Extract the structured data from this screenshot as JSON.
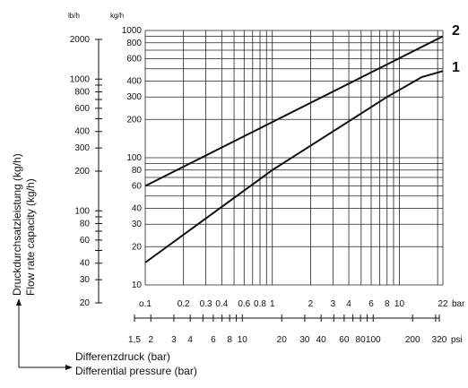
{
  "chart_data": {
    "type": "line",
    "title": "",
    "x_axis": {
      "scale": "log",
      "range": [
        0.1,
        22
      ],
      "unit": "bar",
      "tick_values": [
        0.1,
        0.2,
        0.3,
        0.4,
        0.6,
        0.8,
        1,
        2,
        3,
        4,
        6,
        8,
        10,
        22
      ],
      "tick_labels": [
        "o.1",
        "0.2",
        "0.3",
        "0.4",
        "0.6",
        "0.8",
        "1",
        "2",
        "3",
        "4",
        "6",
        "8",
        "10",
        "22"
      ],
      "label_de": "Differenzdruck (bar)",
      "label_en": "Differential pressure (bar)"
    },
    "psi_axis": {
      "unit": "psi",
      "tick_values": [
        1.5,
        2,
        3,
        4,
        6,
        8,
        10,
        20,
        30,
        40,
        60,
        80,
        100,
        200,
        320
      ],
      "tick_labels": [
        "1,5",
        "2",
        "3",
        "4",
        "6",
        "8",
        "10",
        "20",
        "30",
        "40",
        "60",
        "80",
        "100",
        "200",
        "320"
      ]
    },
    "y_axis": {
      "scale": "log",
      "range": [
        10,
        1000
      ],
      "unit": "kg/h",
      "tick_values": [
        10,
        20,
        30,
        40,
        60,
        80,
        100,
        200,
        300,
        400,
        600,
        800,
        1000
      ],
      "tick_labels": [
        "10",
        "20",
        "30",
        "40",
        "60",
        "80",
        "100",
        "200",
        "300",
        "400",
        "600",
        "800",
        "1000"
      ],
      "label_de": "Druckdurchsatzleistung (kg/h)",
      "label_en": "Flow rate capacity (kg/h)"
    },
    "lbh_axis": {
      "unit": "lb/h",
      "tick_values": [
        20,
        30,
        40,
        60,
        80,
        100,
        200,
        300,
        400,
        600,
        800,
        1000,
        2000
      ],
      "tick_labels": [
        "20",
        "30",
        "40",
        "60",
        "80",
        "100",
        "200",
        "300",
        "400",
        "600",
        "800",
        "1000",
        "2000"
      ]
    },
    "grid": true,
    "series": [
      {
        "name": "2",
        "x": [
          0.1,
          22
        ],
        "y": [
          60,
          900
        ]
      },
      {
        "name": "1",
        "x": [
          0.1,
          1,
          8,
          15,
          22
        ],
        "y": [
          15,
          80,
          300,
          430,
          480
        ]
      }
    ]
  }
}
